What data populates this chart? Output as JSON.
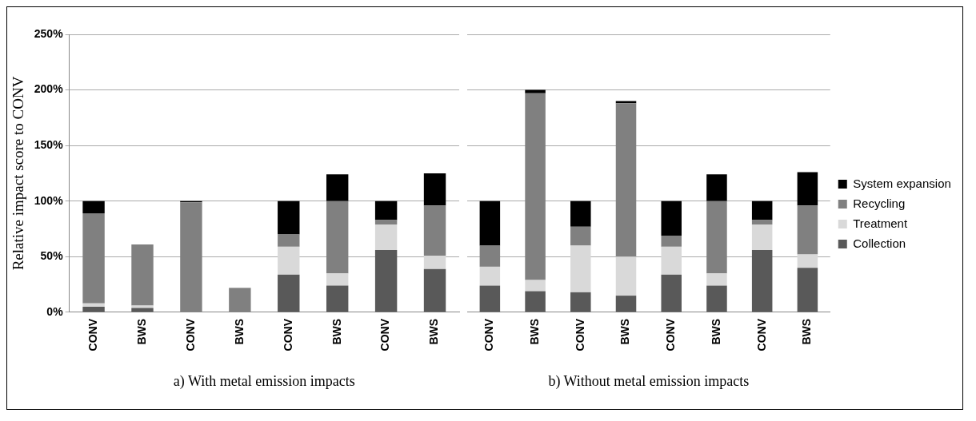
{
  "chart_data": [
    {
      "type": "bar",
      "stacked": true,
      "xlabel": "a) With metal emission impacts",
      "ylabel": "Relative impact score to CONV",
      "categories": [
        "CONV",
        "BWS",
        "CONV",
        "BWS",
        "CONV",
        "BWS",
        "CONV",
        "BWS"
      ],
      "ylim": [
        0,
        250
      ],
      "yticks": [
        {
          "value": 0,
          "label": "0%"
        },
        {
          "value": 50,
          "label": "50%"
        },
        {
          "value": 100,
          "label": "100%"
        },
        {
          "value": 150,
          "label": "150%"
        },
        {
          "value": 200,
          "label": "200%"
        },
        {
          "value": 250,
          "label": "250%"
        }
      ],
      "grid": "y",
      "series": [
        {
          "color": "#595959",
          "values": [
            5,
            4,
            0,
            0,
            34,
            24,
            56,
            39
          ]
        },
        {
          "color": "#d9d9d9",
          "values": [
            3,
            2,
            0,
            0,
            25,
            11,
            23,
            12
          ]
        },
        {
          "color": "#808080",
          "values": [
            81,
            55,
            99,
            22,
            11,
            65,
            4,
            45
          ]
        },
        {
          "color": "#000000",
          "values": [
            11,
            0,
            1,
            0,
            30,
            24,
            17,
            29
          ]
        }
      ]
    },
    {
      "type": "bar",
      "stacked": true,
      "xlabel": "b) Without metal emission impacts",
      "categories": [
        "CONV",
        "BWS",
        "CONV",
        "BWS",
        "CONV",
        "BWS",
        "CONV",
        "BWS"
      ],
      "ylim": [
        0,
        250
      ],
      "yticks": [
        0,
        50,
        100,
        150,
        200,
        250
      ],
      "grid": "y",
      "tick_labels": "x",
      "legend": "right",
      "series": [
        {
          "name": "Collection",
          "color": "#595959",
          "values": [
            24,
            19,
            18,
            15,
            34,
            24,
            56,
            40
          ]
        },
        {
          "name": "Treatment",
          "color": "#d9d9d9",
          "values": [
            17,
            10,
            42,
            35,
            25,
            11,
            23,
            12
          ]
        },
        {
          "name": "Recycling",
          "color": "#808080",
          "values": [
            19,
            168,
            17,
            138,
            10,
            65,
            4,
            44
          ]
        },
        {
          "name": "System expansion",
          "color": "#000000",
          "values": [
            40,
            3,
            23,
            2,
            31,
            24,
            17,
            30
          ]
        }
      ]
    }
  ]
}
